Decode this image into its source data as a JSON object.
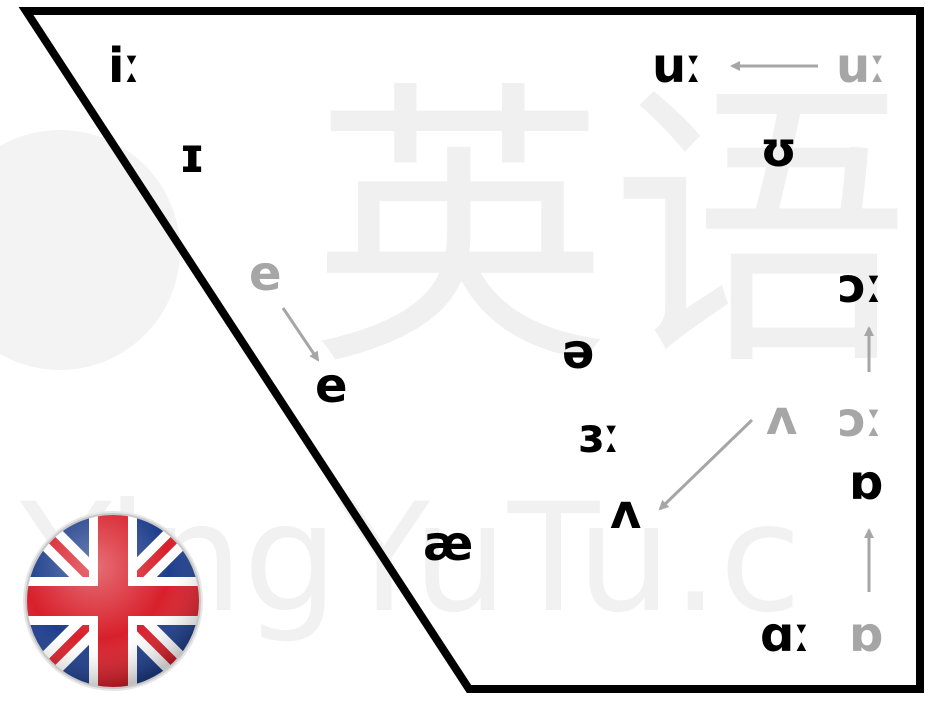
{
  "watermark": {
    "cn_text": "英语",
    "en_text": "YingYuTu.c"
  },
  "vowels": {
    "i_long": "iː",
    "short_i": "ɪ",
    "u_long": "uː",
    "u_long_old": "uː",
    "short_u": "ʊ",
    "e_old": "e",
    "e_new": "e",
    "schwa": "ə",
    "er_long": "ɜː",
    "wedge": "ʌ",
    "wedge_old": "ʌ",
    "ae": "æ",
    "aw_long": "ɔː",
    "aw_long_old": "ɔː",
    "short_o": "ɒ",
    "short_o_old": "ɒ",
    "a_long": "ɑː"
  },
  "colors": {
    "primary": "#000000",
    "secondary": "#a6a6a6",
    "flag_blue": "#1f3f8c",
    "flag_red": "#d8202b",
    "flag_white": "#ffffff"
  }
}
